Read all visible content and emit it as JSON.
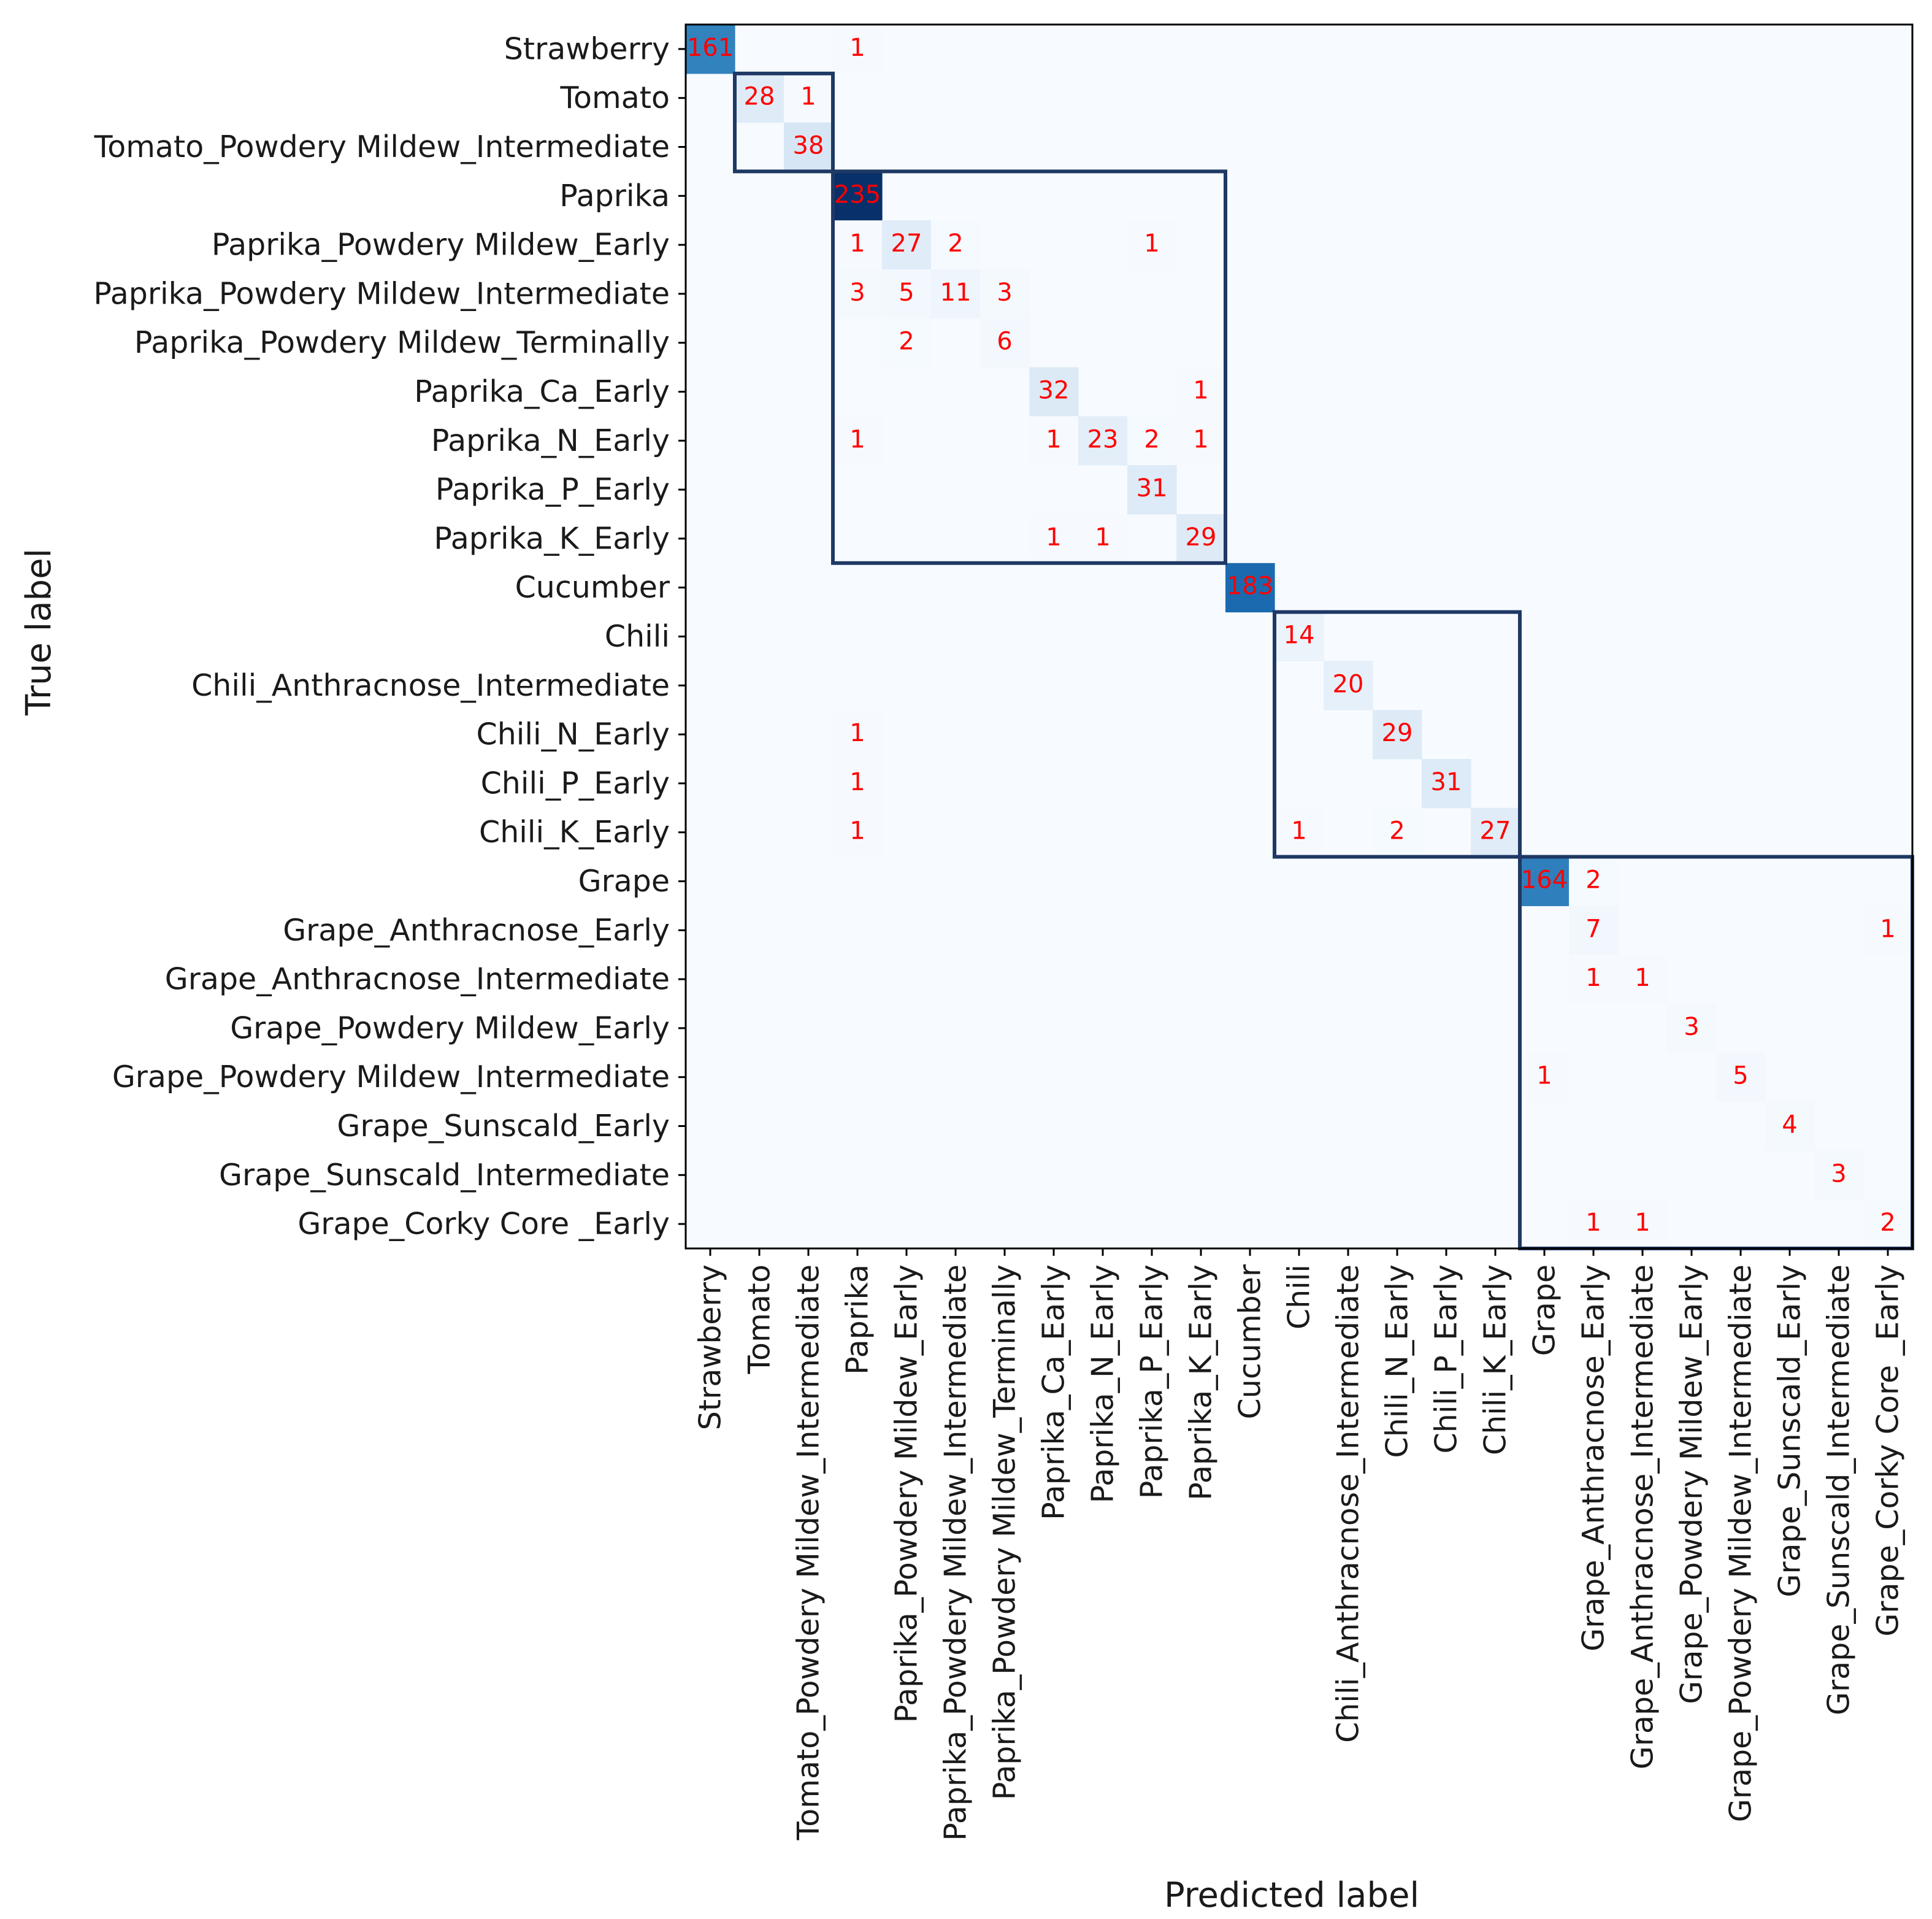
{
  "chart_data": {
    "type": "heatmap",
    "title": "",
    "xlabel": "Predicted label",
    "ylabel": "True label",
    "colormap": "Blues",
    "value_range": [
      0,
      235
    ],
    "count_color": "#ff0000",
    "box_color": "#1f3864",
    "labels": [
      "Strawberry",
      "Tomato",
      "Tomato_Powdery Mildew_Intermediate",
      "Paprika",
      "Paprika_Powdery Mildew_Early",
      "Paprika_Powdery Mildew_Intermediate",
      "Paprika_Powdery Mildew_Terminally",
      "Paprika_Ca_Early",
      "Paprika_N_Early",
      "Paprika_P_Early",
      "Paprika_K_Early",
      "Cucumber",
      "Chili",
      "Chili_Anthracnose_Intermediate",
      "Chili_N_Early",
      "Chili_P_Early",
      "Chili_K_Early",
      "Grape",
      "Grape_Anthracnose_Early",
      "Grape_Anthracnose_Intermediate",
      "Grape_Powdery Mildew_Early",
      "Grape_Powdery Mildew_Intermediate",
      "Grape_Sunscald_Early",
      "Grape_Sunscald_Intermediate",
      "Grape_Corky Core _Early"
    ],
    "cells": [
      {
        "row": 0,
        "col": 0,
        "value": 161
      },
      {
        "row": 0,
        "col": 3,
        "value": 1
      },
      {
        "row": 1,
        "col": 1,
        "value": 28
      },
      {
        "row": 1,
        "col": 2,
        "value": 1
      },
      {
        "row": 2,
        "col": 2,
        "value": 38
      },
      {
        "row": 3,
        "col": 3,
        "value": 235
      },
      {
        "row": 4,
        "col": 3,
        "value": 1
      },
      {
        "row": 4,
        "col": 4,
        "value": 27
      },
      {
        "row": 4,
        "col": 5,
        "value": 2
      },
      {
        "row": 4,
        "col": 9,
        "value": 1
      },
      {
        "row": 5,
        "col": 3,
        "value": 3
      },
      {
        "row": 5,
        "col": 4,
        "value": 5
      },
      {
        "row": 5,
        "col": 5,
        "value": 11
      },
      {
        "row": 5,
        "col": 6,
        "value": 3
      },
      {
        "row": 6,
        "col": 4,
        "value": 2
      },
      {
        "row": 6,
        "col": 6,
        "value": 6
      },
      {
        "row": 7,
        "col": 7,
        "value": 32
      },
      {
        "row": 7,
        "col": 10,
        "value": 1
      },
      {
        "row": 8,
        "col": 3,
        "value": 1
      },
      {
        "row": 8,
        "col": 7,
        "value": 1
      },
      {
        "row": 8,
        "col": 8,
        "value": 23
      },
      {
        "row": 8,
        "col": 9,
        "value": 2
      },
      {
        "row": 8,
        "col": 10,
        "value": 1
      },
      {
        "row": 9,
        "col": 9,
        "value": 31
      },
      {
        "row": 10,
        "col": 7,
        "value": 1
      },
      {
        "row": 10,
        "col": 8,
        "value": 1
      },
      {
        "row": 10,
        "col": 10,
        "value": 29
      },
      {
        "row": 11,
        "col": 11,
        "value": 183
      },
      {
        "row": 12,
        "col": 12,
        "value": 14
      },
      {
        "row": 13,
        "col": 13,
        "value": 20
      },
      {
        "row": 14,
        "col": 3,
        "value": 1
      },
      {
        "row": 14,
        "col": 14,
        "value": 29
      },
      {
        "row": 15,
        "col": 3,
        "value": 1
      },
      {
        "row": 15,
        "col": 15,
        "value": 31
      },
      {
        "row": 16,
        "col": 3,
        "value": 1
      },
      {
        "row": 16,
        "col": 12,
        "value": 1
      },
      {
        "row": 16,
        "col": 14,
        "value": 2
      },
      {
        "row": 16,
        "col": 16,
        "value": 27
      },
      {
        "row": 17,
        "col": 17,
        "value": 164
      },
      {
        "row": 17,
        "col": 18,
        "value": 2
      },
      {
        "row": 18,
        "col": 18,
        "value": 7
      },
      {
        "row": 18,
        "col": 24,
        "value": 1
      },
      {
        "row": 19,
        "col": 18,
        "value": 1
      },
      {
        "row": 19,
        "col": 19,
        "value": 1
      },
      {
        "row": 20,
        "col": 20,
        "value": 3
      },
      {
        "row": 21,
        "col": 17,
        "value": 1
      },
      {
        "row": 21,
        "col": 21,
        "value": 5
      },
      {
        "row": 22,
        "col": 22,
        "value": 4
      },
      {
        "row": 23,
        "col": 23,
        "value": 3
      },
      {
        "row": 24,
        "col": 18,
        "value": 1
      },
      {
        "row": 24,
        "col": 19,
        "value": 1
      },
      {
        "row": 24,
        "col": 24,
        "value": 2
      }
    ],
    "group_boxes": [
      {
        "name": "tomato-group",
        "first": 1,
        "last": 2
      },
      {
        "name": "paprika-group",
        "first": 3,
        "last": 10
      },
      {
        "name": "chili-group",
        "first": 12,
        "last": 16
      },
      {
        "name": "grape-group",
        "first": 17,
        "last": 24
      }
    ]
  }
}
